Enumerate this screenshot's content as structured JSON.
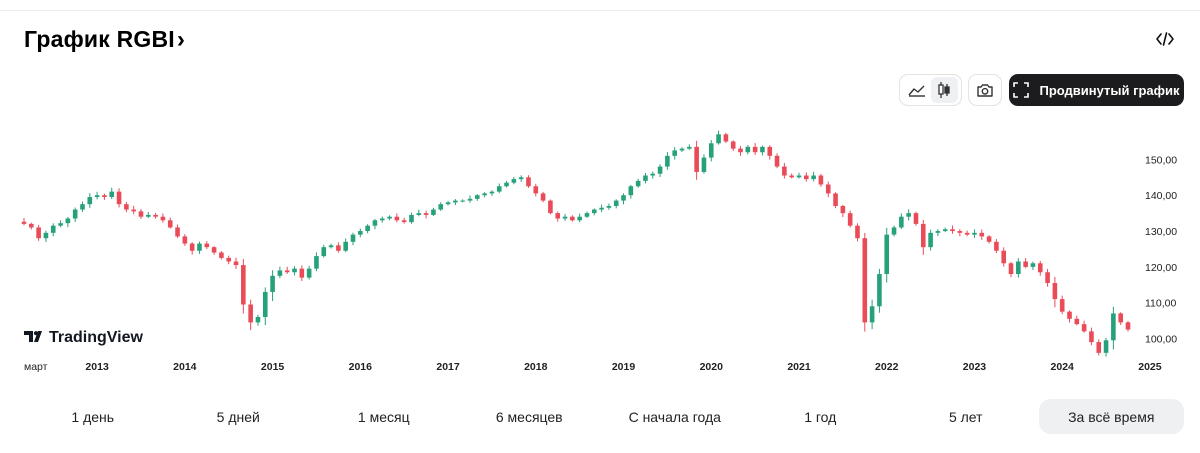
{
  "header": {
    "title": "График RGBI",
    "title_chevron": "›"
  },
  "toolbar": {
    "area_icon": "area-chart-icon",
    "candles_icon": "candlestick-icon",
    "camera_icon": "camera-icon",
    "embed_icon": "code-embed-icon",
    "advanced_label": "Продвинутый график",
    "advanced_icon": "fullscreen-icon"
  },
  "colors": {
    "up": "#26a17b",
    "down": "#e94b59",
    "axis_text": "#222222",
    "button_dark": "#1c1c1e"
  },
  "chart_data": {
    "type": "candlestick",
    "title": "График RGBI",
    "watermark": "TradingView",
    "interval": "1 month",
    "ylim": [
      94,
      161
    ],
    "y_ticks": [
      100,
      110,
      120,
      130,
      140,
      150
    ],
    "y_tick_labels": [
      "100,00",
      "110,00",
      "120,00",
      "130,00",
      "140,00",
      "150,00"
    ],
    "x_tick_labels": [
      "март",
      "2013",
      "2014",
      "2015",
      "2016",
      "2017",
      "2018",
      "2019",
      "2020",
      "2021",
      "2022",
      "2023",
      "2024",
      "2025"
    ],
    "start": "2012-03",
    "last_close": 102.5,
    "closes": [
      132.0,
      131.0,
      128.0,
      129.5,
      131.5,
      132.2,
      133.5,
      136.0,
      137.5,
      139.5,
      140.0,
      139.5,
      141.0,
      137.5,
      136.0,
      135.5,
      134.0,
      134.5,
      134.0,
      133.0,
      131.0,
      128.5,
      126.5,
      124.5,
      126.5,
      125.5,
      124.0,
      122.5,
      121.5,
      120.5,
      109.5,
      104.5,
      106.0,
      113.0,
      117.5,
      119.0,
      118.5,
      119.5,
      117.0,
      119.5,
      123.0,
      125.5,
      126.0,
      124.5,
      127.0,
      129.0,
      130.0,
      131.5,
      133.0,
      133.5,
      134.0,
      133.0,
      132.5,
      134.5,
      135.0,
      134.5,
      136.0,
      137.5,
      138.0,
      138.5,
      138.5,
      139.0,
      140.0,
      140.5,
      141.0,
      142.5,
      143.5,
      144.5,
      145.0,
      142.5,
      140.5,
      138.5,
      135.0,
      133.5,
      134.0,
      133.0,
      134.0,
      135.0,
      136.0,
      136.5,
      137.0,
      138.5,
      140.0,
      142.5,
      144.0,
      145.5,
      146.0,
      148.0,
      151.0,
      152.5,
      153.0,
      153.5,
      146.5,
      150.5,
      154.5,
      157.0,
      155.0,
      153.0,
      152.0,
      153.5,
      152.0,
      153.5,
      151.0,
      148.0,
      145.5,
      145.0,
      145.5,
      144.5,
      145.5,
      143.0,
      140.5,
      137.0,
      135.0,
      131.5,
      128.0,
      104.5,
      109.0,
      118.0,
      129.0,
      131.0,
      134.0,
      135.0,
      132.0,
      125.5,
      129.5,
      130.0,
      130.5,
      130.0,
      129.5,
      129.0,
      129.5,
      128.5,
      127.0,
      124.5,
      121.0,
      118.0,
      121.5,
      120.0,
      121.0,
      118.5,
      115.5,
      111.0,
      107.5,
      105.5,
      104.0,
      102.0,
      99.0,
      96.0,
      99.5,
      107.0,
      104.5,
      102.5
    ]
  },
  "periods": [
    {
      "label": "1 день"
    },
    {
      "label": "5 дней"
    },
    {
      "label": "1 месяц"
    },
    {
      "label": "6 месяцев"
    },
    {
      "label": "С начала года"
    },
    {
      "label": "1 год"
    },
    {
      "label": "5 лет"
    },
    {
      "label": "За всё время",
      "active": true
    }
  ]
}
